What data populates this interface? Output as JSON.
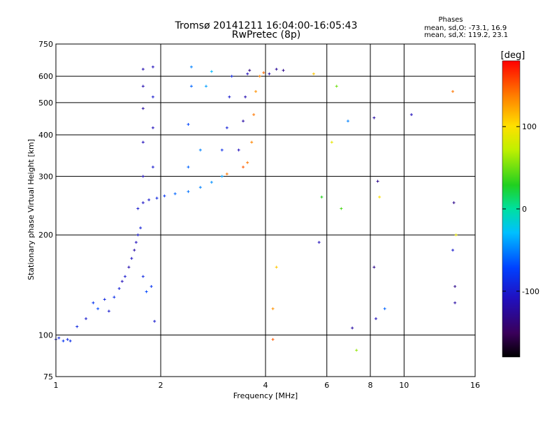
{
  "chart_data": {
    "type": "scatter",
    "title": "Tromsø 20141211 16:04:00-16:05:43",
    "subtitle": "RwPretec (8p)",
    "xlabel": "Frequency [MHz]",
    "ylabel": "Stationary phase Virtual Height [km]",
    "x_scale": "log",
    "y_scale": "log",
    "xlim": [
      1,
      16
    ],
    "ylim": [
      75,
      750
    ],
    "x_ticks": [
      1,
      2,
      4,
      6,
      8,
      10,
      16
    ],
    "x_tick_labels": [
      "1",
      "2",
      "4",
      "6",
      "8",
      "10",
      "16"
    ],
    "y_ticks": [
      75,
      100,
      200,
      300,
      400,
      500,
      600,
      750
    ],
    "y_tick_labels": [
      "75",
      "100",
      "200",
      "300",
      "400",
      "500",
      "600",
      "750"
    ],
    "grid": true,
    "legend": {
      "title": "Phases",
      "lines": [
        "mean, sd,O: -73.1, 16.9",
        "mean, sd,X: 119.2, 23.1"
      ],
      "placement": "top-right"
    },
    "colorbar": {
      "label": "[deg]",
      "range": [
        -180,
        180
      ],
      "ticks": [
        100,
        0,
        -100
      ],
      "tick_labels": [
        "100",
        "0",
        "-100"
      ],
      "colormap": "rainbow (black-purple-blue-cyan-green-yellow-orange-red)"
    },
    "series": [
      {
        "points": [
          [
            1.0,
            97,
            -100
          ],
          [
            1.02,
            98,
            -90
          ],
          [
            1.05,
            96,
            -80
          ],
          [
            1.08,
            97,
            -90
          ],
          [
            1.1,
            96,
            -85
          ],
          [
            1.15,
            106,
            -90
          ],
          [
            1.22,
            112,
            -100
          ],
          [
            1.28,
            125,
            -80
          ],
          [
            1.32,
            120,
            -70
          ],
          [
            1.38,
            128,
            -90
          ],
          [
            1.42,
            118,
            -100
          ],
          [
            1.47,
            130,
            -85
          ],
          [
            1.52,
            138,
            -95
          ],
          [
            1.55,
            145,
            -110
          ],
          [
            1.58,
            150,
            -100
          ],
          [
            1.62,
            160,
            -115
          ],
          [
            1.65,
            170,
            -105
          ],
          [
            1.68,
            180,
            -120
          ],
          [
            1.7,
            190,
            -110
          ],
          [
            1.72,
            200,
            -100
          ],
          [
            1.75,
            210,
            -95
          ],
          [
            1.78,
            150,
            -90
          ],
          [
            1.82,
            135,
            -70
          ],
          [
            1.88,
            140,
            -80
          ],
          [
            1.92,
            110,
            -100
          ],
          [
            1.72,
            240,
            -100
          ],
          [
            1.78,
            250,
            -105
          ],
          [
            1.85,
            255,
            -100
          ],
          [
            1.95,
            258,
            -90
          ],
          [
            2.05,
            262,
            -80
          ],
          [
            2.2,
            266,
            -60
          ],
          [
            2.4,
            270,
            -55
          ],
          [
            2.6,
            278,
            -50
          ],
          [
            2.8,
            288,
            -45
          ],
          [
            3.0,
            300,
            -40
          ],
          [
            3.1,
            305,
            140
          ],
          [
            1.78,
            300,
            -110
          ],
          [
            1.78,
            380,
            -110
          ],
          [
            1.78,
            480,
            -120
          ],
          [
            1.78,
            560,
            -115
          ],
          [
            1.78,
            630,
            -115
          ],
          [
            1.9,
            320,
            -100
          ],
          [
            1.9,
            420,
            -110
          ],
          [
            1.9,
            520,
            -100
          ],
          [
            1.9,
            640,
            -110
          ],
          [
            2.4,
            320,
            -60
          ],
          [
            2.4,
            430,
            -70
          ],
          [
            2.45,
            560,
            -60
          ],
          [
            2.45,
            640,
            -50
          ],
          [
            2.6,
            360,
            -50
          ],
          [
            2.7,
            560,
            -40
          ],
          [
            2.8,
            620,
            -30
          ],
          [
            3.0,
            360,
            -85
          ],
          [
            3.1,
            420,
            -95
          ],
          [
            3.15,
            520,
            -100
          ],
          [
            3.2,
            600,
            -90
          ],
          [
            3.35,
            360,
            -110
          ],
          [
            3.45,
            440,
            -120
          ],
          [
            3.5,
            520,
            -115
          ],
          [
            3.55,
            610,
            -110
          ],
          [
            3.55,
            330,
            140
          ],
          [
            3.65,
            380,
            135
          ],
          [
            3.7,
            460,
            140
          ],
          [
            3.75,
            540,
            130
          ],
          [
            3.85,
            600,
            135
          ],
          [
            3.95,
            615,
            145
          ],
          [
            3.45,
            320,
            150
          ],
          [
            4.1,
            610,
            -120
          ],
          [
            4.3,
            630,
            -125
          ],
          [
            4.5,
            625,
            -130
          ],
          [
            3.6,
            625,
            -135
          ],
          [
            4.2,
            120,
            130
          ],
          [
            4.2,
            97,
            150
          ],
          [
            4.3,
            160,
            110
          ],
          [
            5.5,
            610,
            110
          ],
          [
            5.7,
            190,
            -110
          ],
          [
            5.8,
            260,
            30
          ],
          [
            6.2,
            380,
            90
          ],
          [
            6.4,
            560,
            50
          ],
          [
            6.6,
            240,
            40
          ],
          [
            6.9,
            440,
            -50
          ],
          [
            7.1,
            105,
            -120
          ],
          [
            7.3,
            90,
            60
          ],
          [
            8.2,
            450,
            -120
          ],
          [
            8.4,
            290,
            -130
          ],
          [
            8.5,
            260,
            100
          ],
          [
            8.8,
            120,
            -60
          ],
          [
            8.2,
            160,
            -130
          ],
          [
            8.3,
            112,
            -110
          ],
          [
            10.5,
            460,
            -110
          ],
          [
            13.8,
            540,
            140
          ],
          [
            13.9,
            250,
            -130
          ],
          [
            14.0,
            140,
            -130
          ],
          [
            14.0,
            125,
            -120
          ],
          [
            14.1,
            200,
            90
          ],
          [
            13.8,
            180,
            -100
          ]
        ]
      }
    ]
  }
}
